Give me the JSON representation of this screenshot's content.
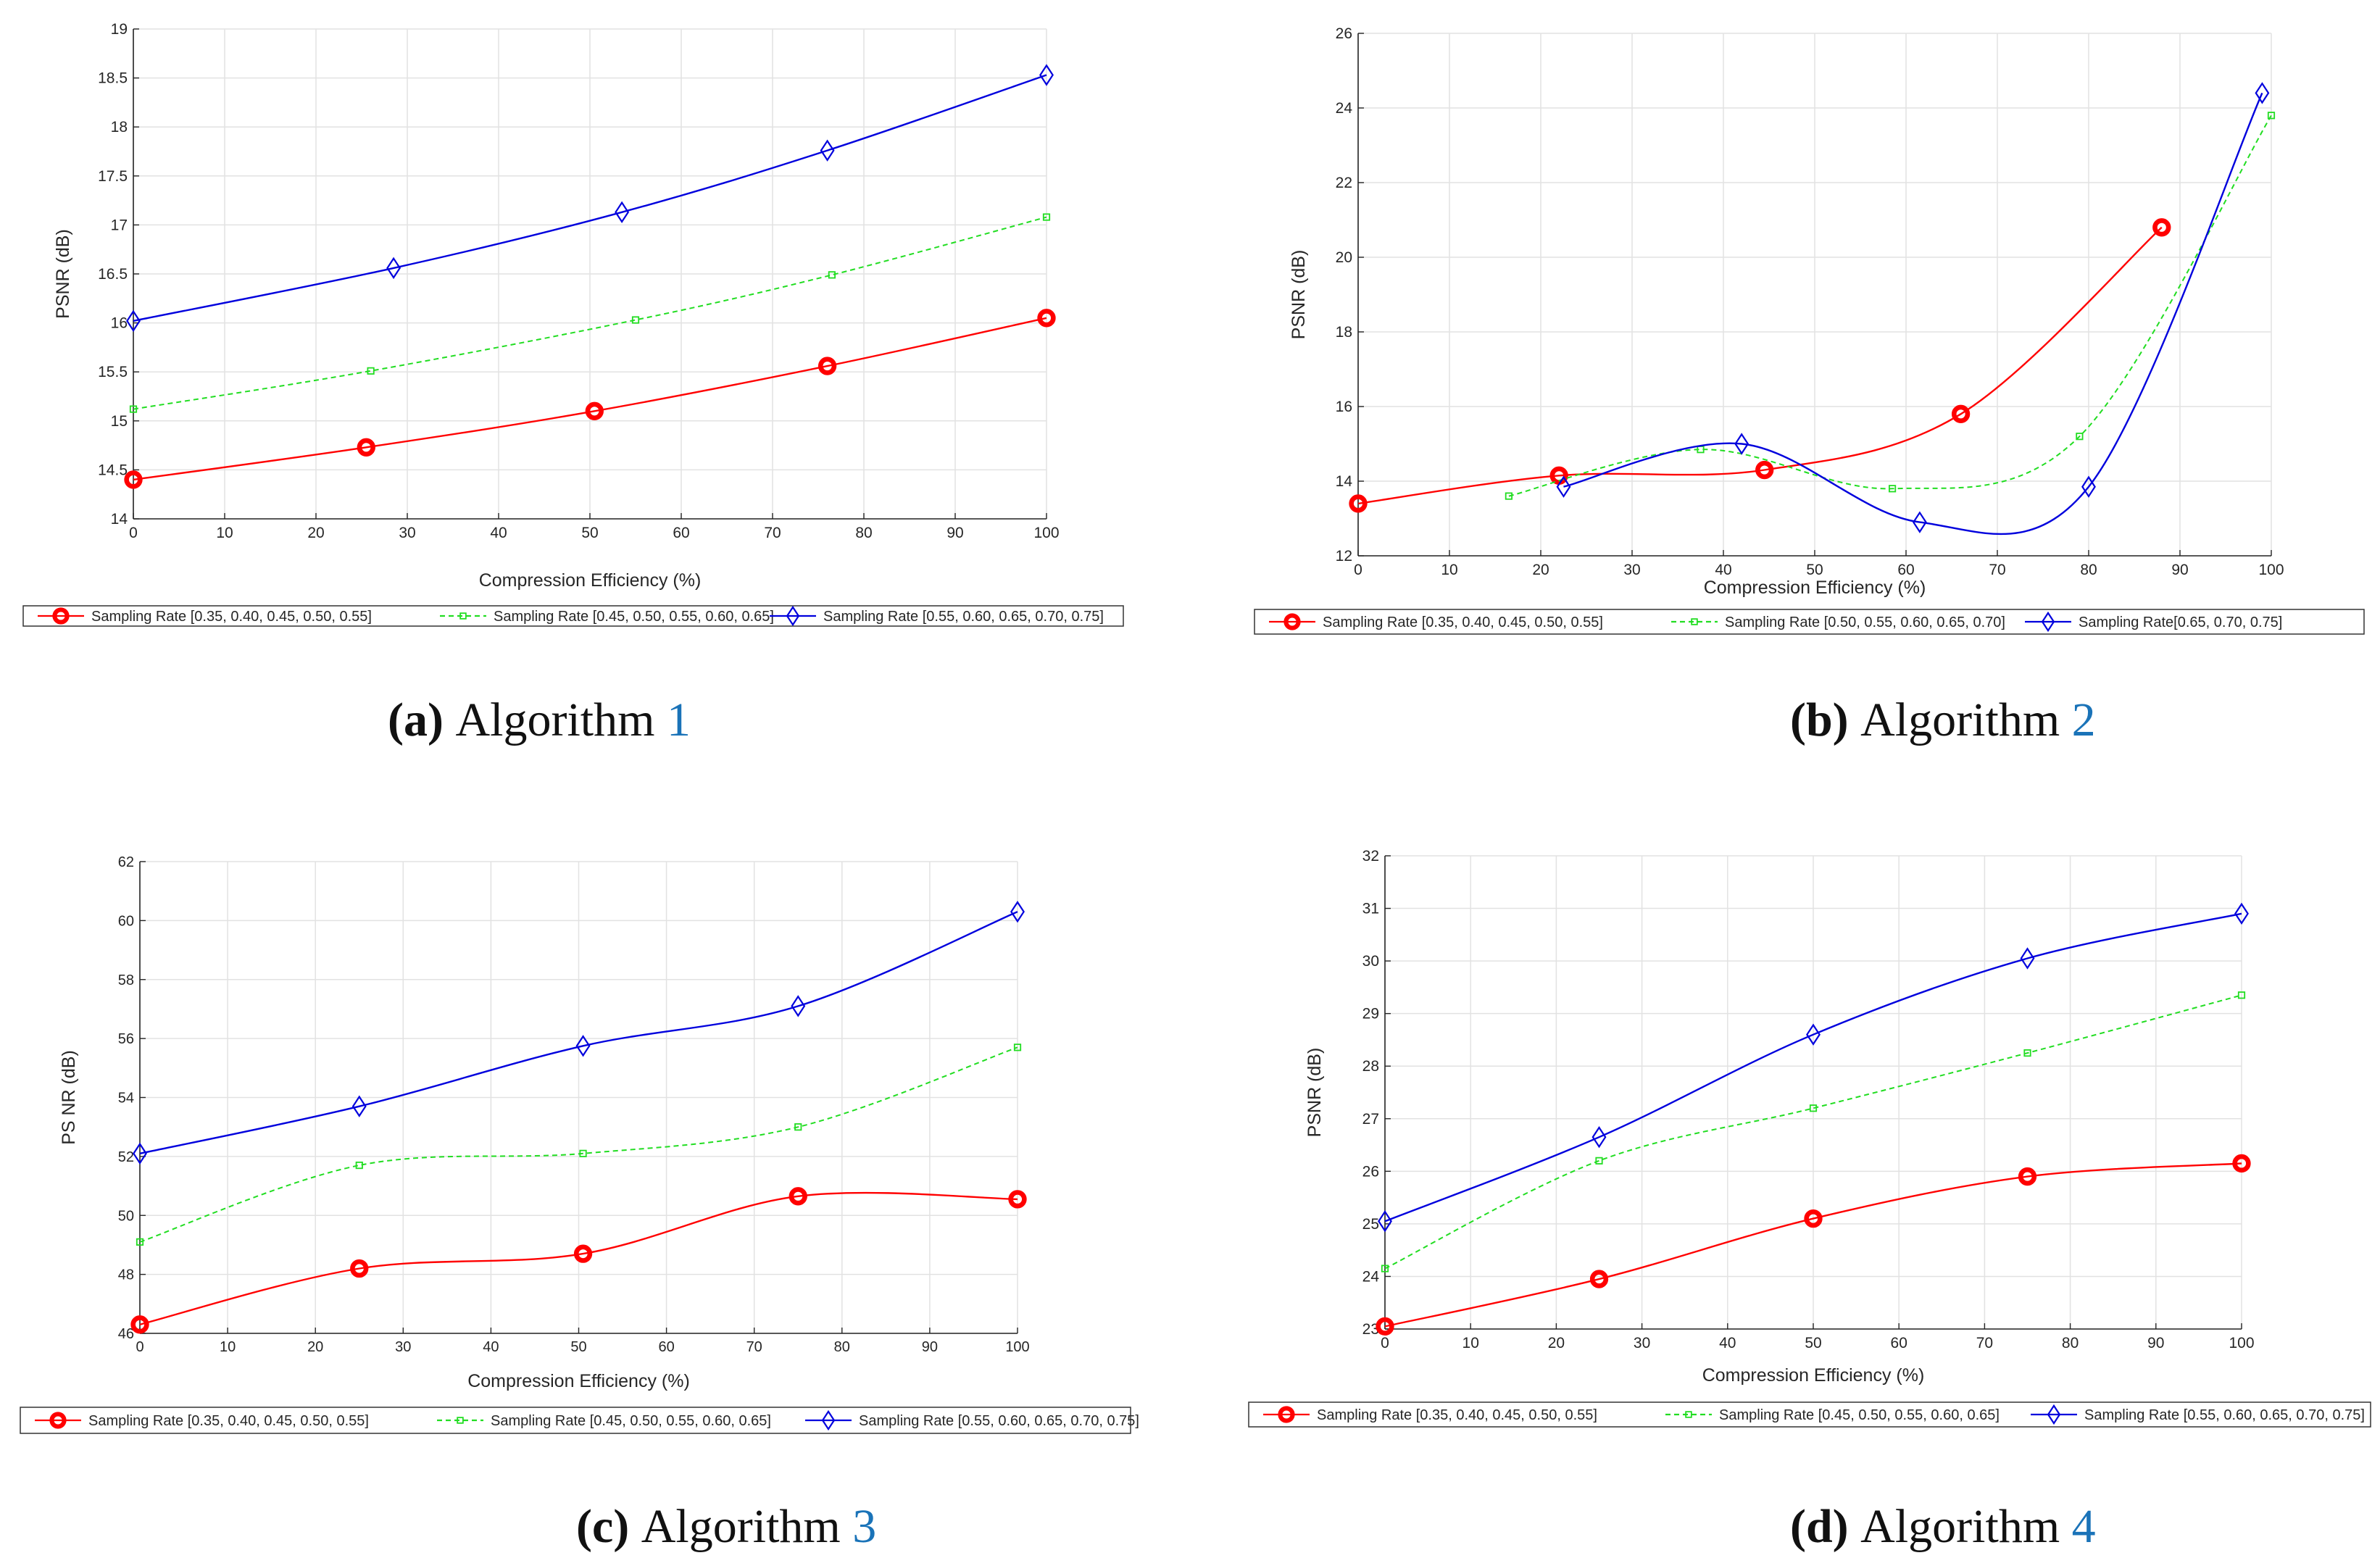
{
  "colors": {
    "red": "#ff0000",
    "green": "#22dd22",
    "blue": "#0000dd",
    "grid": "#e2e2e2",
    "axis": "#262626",
    "ref": "#1a73b8"
  },
  "chart_data": [
    {
      "type": "line",
      "title": "",
      "xlabel": "Compression Efficiency (%)",
      "ylabel": "PSNR (dB)",
      "xlim": [
        0,
        100
      ],
      "ylim": [
        14,
        19
      ],
      "xticks": [
        "0",
        "10",
        "20",
        "30",
        "40",
        "50",
        "60",
        "70",
        "80",
        "90",
        "100"
      ],
      "yticks": [
        "14",
        "14.5",
        "15",
        "15.5",
        "16",
        "16.5",
        "17",
        "17.5",
        "18",
        "18.5",
        "19"
      ],
      "grid": true,
      "legend_position": "bottom",
      "caption": {
        "label": "(a)",
        "text": "Algorithm",
        "ref": "1"
      },
      "series": [
        {
          "name": "Sampling Rate [0.35, 0.40, 0.45, 0.50, 0.55]",
          "color": "red",
          "marker": "circle",
          "dashed": false,
          "x": [
            0,
            25.5,
            50.5,
            76,
            100
          ],
          "y": [
            14.4,
            14.73,
            15.1,
            15.56,
            16.05
          ]
        },
        {
          "name": "Sampling Rate [0.45, 0.50, 0.55, 0.60, 0.65]",
          "color": "green",
          "marker": "square",
          "dashed": true,
          "x": [
            0,
            26,
            55,
            76.5,
            100
          ],
          "y": [
            15.12,
            15.51,
            16.03,
            16.49,
            17.08
          ]
        },
        {
          "name": "Sampling Rate [0.55, 0.60, 0.65, 0.70, 0.75]",
          "color": "blue",
          "marker": "diamond",
          "dashed": false,
          "x": [
            0,
            28.5,
            53.5,
            76,
            100
          ],
          "y": [
            16.02,
            16.56,
            17.13,
            17.76,
            18.53
          ]
        }
      ]
    },
    {
      "type": "line",
      "title": "",
      "xlabel": "Compression Efficiency (%)",
      "ylabel": "PSNR (dB)",
      "xlim": [
        0,
        100
      ],
      "ylim": [
        12,
        26
      ],
      "xticks": [
        "0",
        "10",
        "20",
        "30",
        "40",
        "50",
        "60",
        "70",
        "80",
        "90",
        "100"
      ],
      "yticks": [
        "12",
        "14",
        "16",
        "18",
        "20",
        "22",
        "24",
        "26"
      ],
      "grid": true,
      "legend_position": "bottom",
      "caption": {
        "label": "(b)",
        "text": "Algorithm",
        "ref": "2"
      },
      "series": [
        {
          "name": "Sampling Rate [0.35, 0.40, 0.45, 0.50, 0.55]",
          "color": "red",
          "marker": "circle",
          "dashed": false,
          "x": [
            0,
            22,
            44.5,
            66,
            88
          ],
          "y": [
            13.4,
            14.15,
            14.3,
            15.8,
            20.8
          ]
        },
        {
          "name": "Sampling Rate [0.50, 0.55, 0.60, 0.65, 0.70]",
          "color": "green",
          "marker": "square",
          "dashed": true,
          "x": [
            16.5,
            37.5,
            58.5,
            79,
            100
          ],
          "y": [
            13.6,
            14.85,
            13.8,
            15.2,
            23.8
          ]
        },
        {
          "name": "Sampling Rate[0.65, 0.70, 0.75]",
          "color": "blue",
          "marker": "diamond",
          "dashed": false,
          "x": [
            22.5,
            42,
            61.5,
            80,
            99
          ],
          "y": [
            13.85,
            15.0,
            12.9,
            13.85,
            24.4
          ]
        }
      ]
    },
    {
      "type": "line",
      "title": "",
      "xlabel": "Compression Efficiency (%)",
      "ylabel": "PS NR (dB)",
      "xlim": [
        0,
        100
      ],
      "ylim": [
        46,
        62
      ],
      "xticks": [
        "0",
        "10",
        "20",
        "30",
        "40",
        "50",
        "60",
        "70",
        "80",
        "90",
        "100"
      ],
      "yticks": [
        "46",
        "48",
        "50",
        "52",
        "54",
        "56",
        "58",
        "60",
        "62"
      ],
      "grid": true,
      "legend_position": "bottom",
      "caption": {
        "label": "(c)",
        "text": "Algorithm",
        "ref": "3"
      },
      "series": [
        {
          "name": "Sampling Rate [0.35, 0.40, 0.45, 0.50, 0.55]",
          "color": "red",
          "marker": "circle",
          "dashed": false,
          "x": [
            0,
            25,
            50.5,
            75,
            100
          ],
          "y": [
            46.3,
            48.2,
            48.7,
            50.65,
            50.55
          ]
        },
        {
          "name": "Sampling Rate [0.45, 0.50, 0.55, 0.60, 0.65]",
          "color": "green",
          "marker": "square",
          "dashed": true,
          "x": [
            0,
            25,
            50.5,
            75,
            100
          ],
          "y": [
            49.1,
            51.7,
            52.1,
            53.0,
            55.7
          ]
        },
        {
          "name": "Sampling Rate [0.55, 0.60, 0.65, 0.70, 0.75]",
          "color": "blue",
          "marker": "diamond",
          "dashed": false,
          "x": [
            0,
            25,
            50.5,
            75,
            100
          ],
          "y": [
            52.1,
            53.7,
            55.75,
            57.1,
            60.3
          ]
        }
      ]
    },
    {
      "type": "line",
      "title": "",
      "xlabel": "Compression Efficiency (%)",
      "ylabel": "PSNR (dB)",
      "xlim": [
        0,
        100
      ],
      "ylim": [
        23,
        32
      ],
      "xticks": [
        "0",
        "10",
        "20",
        "30",
        "40",
        "50",
        "60",
        "70",
        "80",
        "90",
        "100"
      ],
      "yticks": [
        "23",
        "24",
        "25",
        "26",
        "27",
        "28",
        "29",
        "30",
        "31",
        "32"
      ],
      "grid": true,
      "legend_position": "bottom",
      "caption": {
        "label": "(d)",
        "text": "Algorithm",
        "ref": "4"
      },
      "series": [
        {
          "name": "Sampling Rate [0.35, 0.40, 0.45, 0.50, 0.55]",
          "color": "red",
          "marker": "circle",
          "dashed": false,
          "x": [
            0,
            25,
            50,
            75,
            100
          ],
          "y": [
            23.05,
            23.95,
            25.1,
            25.9,
            26.15
          ]
        },
        {
          "name": "Sampling Rate [0.45, 0.50, 0.55, 0.60, 0.65]",
          "color": "green",
          "marker": "square",
          "dashed": true,
          "x": [
            0,
            25,
            50,
            75,
            100
          ],
          "y": [
            24.15,
            26.2,
            27.2,
            28.25,
            29.35
          ]
        },
        {
          "name": "Sampling Rate [0.55, 0.60, 0.65, 0.70, 0.75]",
          "color": "blue",
          "marker": "diamond",
          "dashed": false,
          "x": [
            0,
            25,
            50,
            75,
            100
          ],
          "y": [
            25.05,
            26.65,
            28.6,
            30.05,
            30.9
          ]
        }
      ]
    }
  ]
}
